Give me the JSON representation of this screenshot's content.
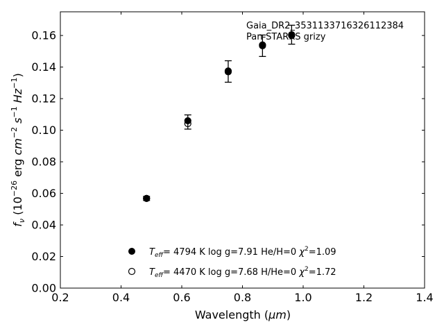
{
  "chart_data": {
    "type": "scatter",
    "annotations": [
      "Gaia_DR2_3531133716326112384",
      "Pan-STARRS grizy"
    ],
    "xlabel": {
      "prefix": "Wavelength (",
      "sym": "μm",
      "suffix": ")"
    },
    "ylabel": {
      "f": "f",
      "f_sub": "ν",
      "unit_a": " (10",
      "exp_a": "−26",
      "unit_b": " erg ",
      "cm": "cm",
      "exp_cm": "−2",
      "s": " s",
      "exp_s": "−1",
      "hz": " Hz",
      "exp_hz": "−1",
      "close": ")"
    },
    "xlim": [
      0.2,
      1.4
    ],
    "ylim": [
      0.0,
      0.175
    ],
    "xticks": [
      0.2,
      0.4,
      0.6,
      0.8,
      1.0,
      1.2,
      1.4
    ],
    "xtick_labels": [
      "0.2",
      "0.4",
      "0.6",
      "0.8",
      "1.0",
      "1.2",
      "1.4"
    ],
    "yticks": [
      0.0,
      0.02,
      0.04,
      0.06,
      0.08,
      0.1,
      0.12,
      0.14,
      0.16
    ],
    "ytick_labels": [
      "0.00",
      "0.02",
      "0.04",
      "0.06",
      "0.08",
      "0.10",
      "0.12",
      "0.14",
      "0.16"
    ],
    "grid": false,
    "legend_placement": "lower-center",
    "observed": {
      "x": [
        0.484,
        0.62,
        0.753,
        0.866,
        0.962
      ],
      "y": [
        0.0568,
        0.1052,
        0.1372,
        0.1535,
        0.1605
      ],
      "err": [
        0.0013,
        0.0045,
        0.0068,
        0.0068,
        0.006
      ]
    },
    "series": [
      {
        "marker": "filled",
        "label": {
          "t": "T",
          "t_sub": "eff",
          "text": "=  4794 K  log g=7.91  He/H=0  ",
          "chi": "χ",
          "chi_exp": "2",
          "chi_val": "=1.09"
        },
        "x": [
          0.484,
          0.62,
          0.753,
          0.866,
          0.962
        ],
        "y": [
          0.0568,
          0.106,
          0.1375,
          0.154,
          0.1605
        ]
      },
      {
        "marker": "open",
        "label": {
          "t": "T",
          "t_sub": "eff",
          "text": "=  4470 K  log g=7.68  H/He=0  ",
          "chi": "χ",
          "chi_exp": "2",
          "chi_val": "=1.72"
        },
        "x": [
          0.484,
          0.62,
          0.753,
          0.866,
          0.962
        ],
        "y": [
          0.0568,
          0.1042,
          0.137,
          0.1535,
          0.16
        ]
      }
    ]
  }
}
